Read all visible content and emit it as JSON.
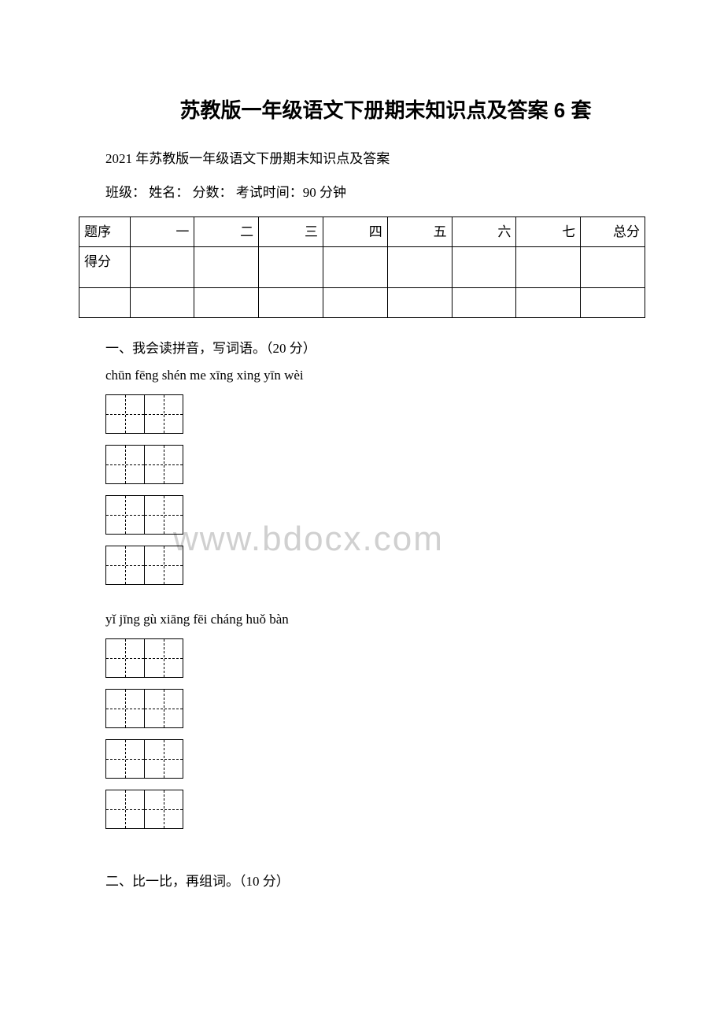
{
  "title": "苏教版一年级语文下册期末知识点及答案 6 套",
  "subtitle": "2021 年苏教版一年级语文下册期末知识点及答案",
  "info_line": "班级：  姓名：  分数：   考试时间：90 分钟",
  "score_table": {
    "row1_label": "题序",
    "columns": [
      "一",
      "二",
      "三",
      "四",
      "五",
      "六",
      "七",
      "总分"
    ],
    "row2_label": "得分"
  },
  "section1": {
    "heading": "一、我会读拼音，写词语。（20 分）",
    "pinyin1": "chūn fēng shén me   xīng xing yīn wèi",
    "pinyin2": "yǐ jīng   gù xiāng fēi cháng   huǒ bàn"
  },
  "section2": {
    "heading": "二、比一比，再组词。（10 分）"
  },
  "watermark": "www.bdocx.com",
  "colors": {
    "text": "#000000",
    "background": "#ffffff",
    "watermark": "#d0d0d0",
    "border": "#000000"
  }
}
